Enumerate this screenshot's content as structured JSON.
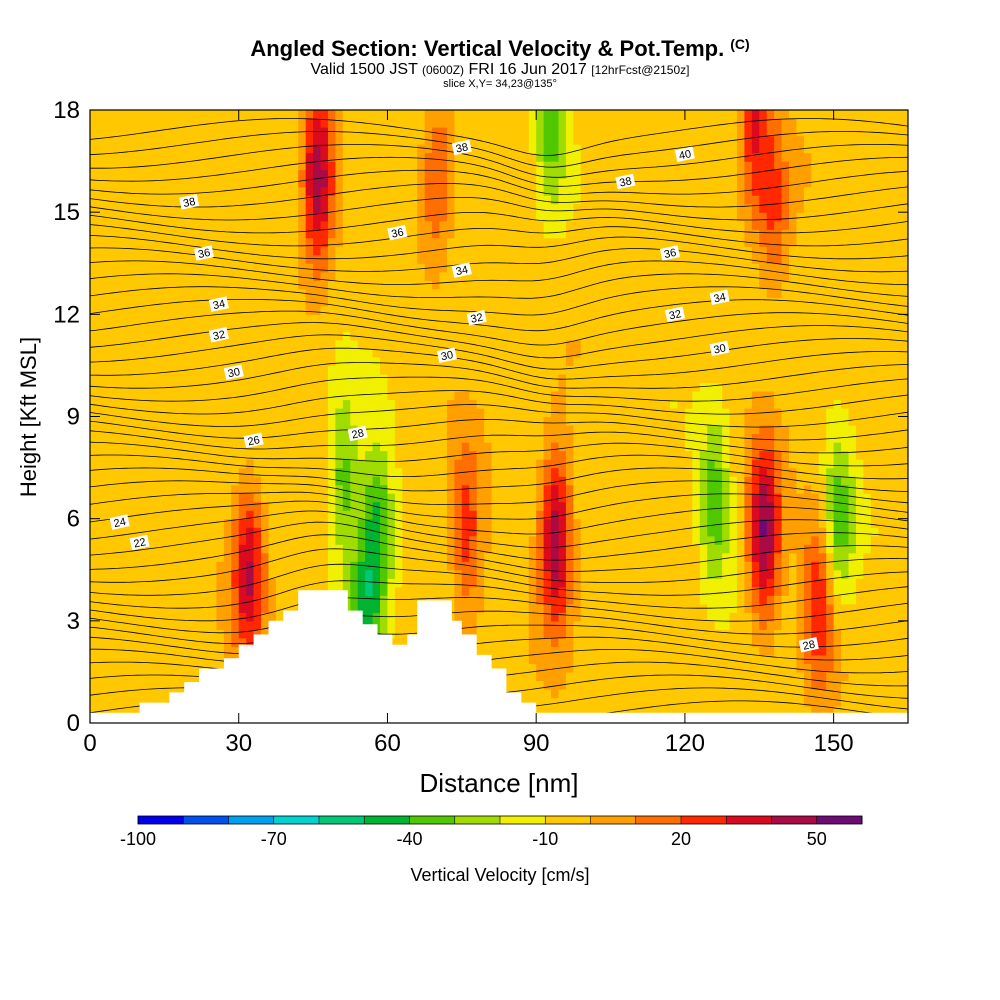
{
  "header": {
    "title": "Angled Section: Vertical Velocity & Pot.Temp.",
    "title_tag": "(C)",
    "valid_prefix": "Valid 1500 JST",
    "valid_zulu": "(0600Z)",
    "valid_date": "FRI 16 Jun 2017",
    "forecast": "[12hrFcst@2150z]",
    "slice": "slice X,Y= 34,23@135°"
  },
  "chart_data": {
    "type": "heatmap",
    "xlabel": "Distance [nm]",
    "ylabel": "Height [Kft MSL]",
    "xlim": [
      0,
      165
    ],
    "ylim": [
      0,
      18
    ],
    "x_ticks": [
      0,
      30,
      60,
      90,
      120,
      150
    ],
    "y_ticks": [
      0,
      3,
      6,
      9,
      12,
      15,
      18
    ],
    "colorbar": {
      "label": "Vertical Velocity [cm/s]",
      "tick_labels": [
        -100,
        -70,
        -40,
        -10,
        20,
        50
      ],
      "levels": [
        -100,
        -90,
        -80,
        -70,
        -60,
        -50,
        -40,
        -30,
        -20,
        -10,
        0,
        10,
        20,
        30,
        40,
        50,
        60
      ],
      "colors": [
        "#0000ee",
        "#0050ee",
        "#00a0ee",
        "#00d2d2",
        "#00c878",
        "#00b432",
        "#50c800",
        "#a0dc00",
        "#f0f000",
        "#ffc800",
        "#ffa000",
        "#ff6e00",
        "#ff2800",
        "#dc0a1e",
        "#aa0a46",
        "#6e0a78"
      ]
    },
    "background_value": -5,
    "updraft_cores": [
      {
        "x": 46,
        "y": 16,
        "peak": 55
      },
      {
        "x": 32,
        "y": 4.5,
        "peak": 45
      },
      {
        "x": 76,
        "y": 5.5,
        "peak": 30
      },
      {
        "x": 94,
        "y": 5.5,
        "peak": 55
      },
      {
        "x": 136,
        "y": 5.5,
        "peak": 55
      },
      {
        "x": 147,
        "y": 3.5,
        "peak": 35
      },
      {
        "x": 70,
        "y": 16,
        "peak": 25
      },
      {
        "x": 134,
        "y": 17.5,
        "peak": 35
      },
      {
        "x": 138,
        "y": 15,
        "peak": 25
      }
    ],
    "downdraft_cores": [
      {
        "x": 51,
        "y": 7,
        "peak": -30
      },
      {
        "x": 58,
        "y": 5.5,
        "peak": -40
      },
      {
        "x": 55,
        "y": 3,
        "peak": -35
      },
      {
        "x": 126,
        "y": 6.5,
        "peak": -30
      },
      {
        "x": 151,
        "y": 6,
        "peak": -30
      },
      {
        "x": 93,
        "y": 17.5,
        "peak": -30
      }
    ],
    "terrain": [
      [
        0,
        0.3
      ],
      [
        10,
        0.3
      ],
      [
        10,
        0.6
      ],
      [
        16,
        0.6
      ],
      [
        16,
        0.9
      ],
      [
        19,
        0.9
      ],
      [
        19,
        1.2
      ],
      [
        22,
        1.2
      ],
      [
        22,
        1.6
      ],
      [
        27,
        1.6
      ],
      [
        27,
        1.9
      ],
      [
        30,
        1.9
      ],
      [
        30,
        2.3
      ],
      [
        33,
        2.3
      ],
      [
        33,
        2.6
      ],
      [
        36,
        2.6
      ],
      [
        36,
        3.0
      ],
      [
        39,
        3.0
      ],
      [
        39,
        3.3
      ],
      [
        42,
        3.3
      ],
      [
        42,
        3.9
      ],
      [
        52,
        3.9
      ],
      [
        52,
        3.3
      ],
      [
        55,
        3.3
      ],
      [
        55,
        2.9
      ],
      [
        58,
        2.9
      ],
      [
        58,
        2.6
      ],
      [
        61,
        2.6
      ],
      [
        61,
        2.3
      ],
      [
        64,
        2.3
      ],
      [
        64,
        2.6
      ],
      [
        66,
        2.6
      ],
      [
        66,
        3.6
      ],
      [
        73,
        3.6
      ],
      [
        73,
        3.0
      ],
      [
        75,
        3.0
      ],
      [
        75,
        2.6
      ],
      [
        78,
        2.6
      ],
      [
        78,
        2.0
      ],
      [
        81,
        2.0
      ],
      [
        81,
        1.6
      ],
      [
        84,
        1.6
      ],
      [
        84,
        0.9
      ],
      [
        87,
        0.9
      ],
      [
        87,
        0.6
      ],
      [
        90,
        0.6
      ],
      [
        90,
        0.3
      ],
      [
        165,
        0.3
      ]
    ],
    "theta_labels": [
      {
        "text": "22",
        "x": 10,
        "y": 5.3
      },
      {
        "text": "24",
        "x": 6,
        "y": 5.9
      },
      {
        "text": "26",
        "x": 33,
        "y": 8.3
      },
      {
        "text": "28",
        "x": 54,
        "y": 8.5
      },
      {
        "text": "28",
        "x": 145,
        "y": 2.3
      },
      {
        "text": "30",
        "x": 29,
        "y": 10.3
      },
      {
        "text": "30",
        "x": 72,
        "y": 10.8
      },
      {
        "text": "30",
        "x": 127,
        "y": 11.0
      },
      {
        "text": "32",
        "x": 26,
        "y": 11.4
      },
      {
        "text": "32",
        "x": 78,
        "y": 11.9
      },
      {
        "text": "32",
        "x": 118,
        "y": 12.0
      },
      {
        "text": "34",
        "x": 26,
        "y": 12.3
      },
      {
        "text": "34",
        "x": 75,
        "y": 13.3
      },
      {
        "text": "34",
        "x": 127,
        "y": 12.5
      },
      {
        "text": "36",
        "x": 23,
        "y": 13.8
      },
      {
        "text": "36",
        "x": 62,
        "y": 14.4
      },
      {
        "text": "36",
        "x": 117,
        "y": 13.8
      },
      {
        "text": "38",
        "x": 20,
        "y": 15.3
      },
      {
        "text": "38",
        "x": 75,
        "y": 16.9
      },
      {
        "text": "38",
        "x": 108,
        "y": 15.9
      },
      {
        "text": "40",
        "x": 120,
        "y": 16.7
      }
    ]
  }
}
